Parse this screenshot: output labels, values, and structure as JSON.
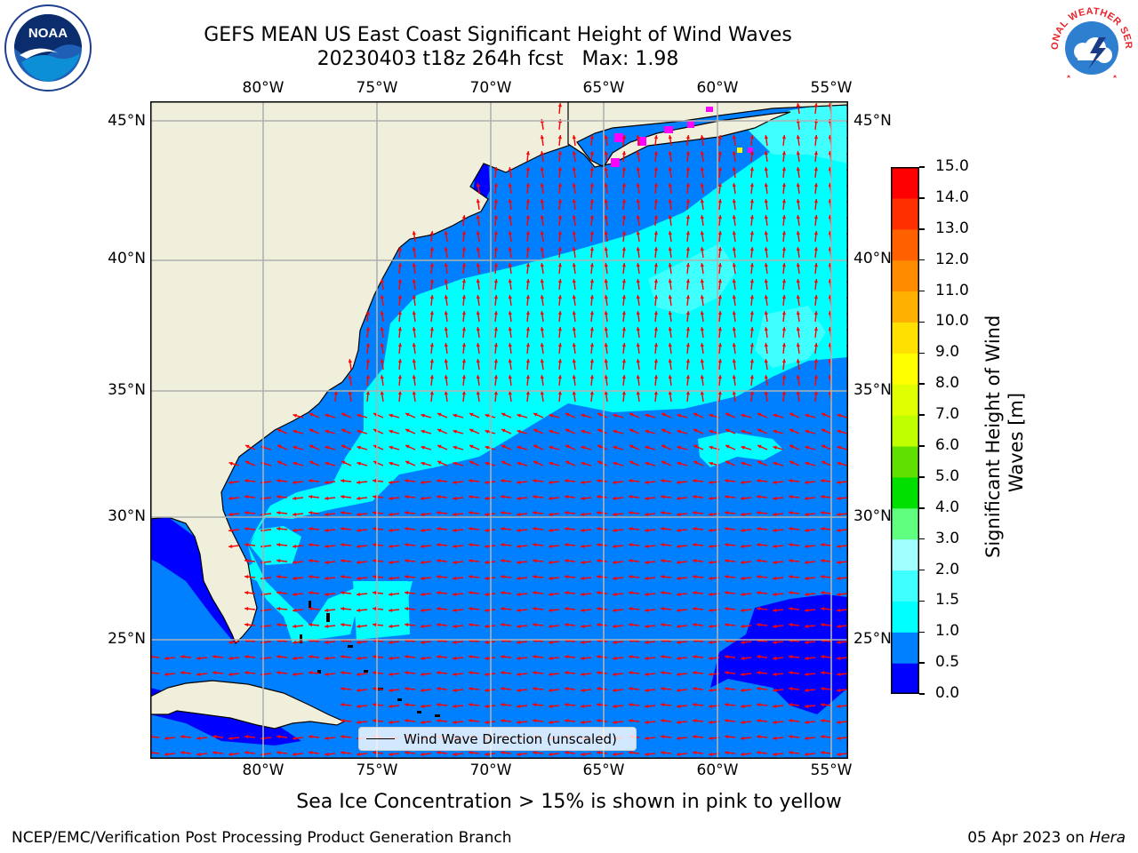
{
  "title": {
    "line1": "GEFS MEAN US East Coast Significant Height of Wind Waves",
    "line2": "20230403 t18z 264h fcst   Max: 1.98"
  },
  "axes": {
    "lon_labels": [
      "80°W",
      "75°W",
      "70°W",
      "65°W",
      "60°W",
      "55°W"
    ],
    "lat_labels": [
      "45°N",
      "40°N",
      "35°N",
      "30°N",
      "25°N"
    ]
  },
  "legend": {
    "label": "Wind Wave Direction (unscaled)",
    "arrow_color": "#ff0000"
  },
  "colorbar": {
    "label_line1": "Significant Height of Wind",
    "label_line2": "Waves [m]",
    "ticks": [
      "0.0",
      "0.5",
      "1.0",
      "1.5",
      "2.0",
      "3.0",
      "4.0",
      "5.0",
      "6.0",
      "7.0",
      "8.0",
      "9.0",
      "10.0",
      "11.0",
      "12.0",
      "13.0",
      "14.0",
      "15.0"
    ],
    "colors": [
      "#0000ff",
      "#0080ff",
      "#00ffff",
      "#40ffff",
      "#a0ffff",
      "#60ff80",
      "#00e000",
      "#60e000",
      "#c0ff00",
      "#e0ff00",
      "#ffff00",
      "#ffe000",
      "#ffb000",
      "#ff8c00",
      "#ff6000",
      "#ff3000",
      "#ff0000"
    ]
  },
  "sea_ice_note": "Sea Ice Concentration > 15% is shown in pink to yellow",
  "footer": {
    "left": "NCEP/EMC/Verification Post Processing Product Generation Branch",
    "right_prefix": "05 Apr 2023 on ",
    "right_host": "Hera"
  },
  "logos": {
    "noaa_text": "NOAA",
    "nws_text": "NATIONAL WEATHER SERVICE"
  },
  "map": {
    "projection": "cylindrical",
    "lon_range": [
      -85,
      -54
    ],
    "lat_range": [
      20.5,
      46.5
    ],
    "land_color": "#efefdc",
    "grid_color": "#b0b0b0"
  }
}
